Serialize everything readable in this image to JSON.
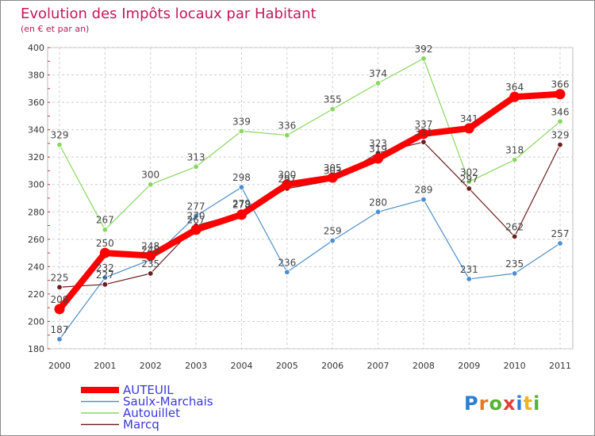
{
  "chart_data": {
    "type": "line",
    "title": "Evolution des Impôts locaux par Habitant",
    "subtitle": "(en € et par an)",
    "xlabel": "",
    "ylabel": "",
    "categories": [
      "2000",
      "2001",
      "2002",
      "2003",
      "2004",
      "2005",
      "2006",
      "2007",
      "2008",
      "2009",
      "2010",
      "2011"
    ],
    "y_ticks": [
      180,
      200,
      220,
      240,
      260,
      280,
      300,
      320,
      340,
      360,
      380,
      400
    ],
    "ylim": [
      180,
      400
    ],
    "grid": true,
    "legend_position": "bottom-left",
    "series": [
      {
        "name": "AUTEUIL",
        "color": "#ff0000",
        "values": [
          209,
          250,
          248,
          267,
          278,
          300,
          305,
          319,
          337,
          341,
          364,
          366
        ]
      },
      {
        "name": "Saulx-Marchais",
        "color": "#4d8fcc",
        "values": [
          187,
          232,
          245,
          277,
          298,
          236,
          259,
          280,
          289,
          231,
          235,
          257
        ]
      },
      {
        "name": "Autouillet",
        "color": "#88d860",
        "values": [
          329,
          267,
          300,
          313,
          339,
          336,
          355,
          374,
          392,
          302,
          318,
          346
        ]
      },
      {
        "name": "Marcq",
        "color": "#6b1f1f",
        "values": [
          225,
          227,
          235,
          270,
          279,
          297,
          303,
          323,
          331,
          297,
          262,
          329
        ]
      }
    ],
    "logo": "Proxiti"
  }
}
